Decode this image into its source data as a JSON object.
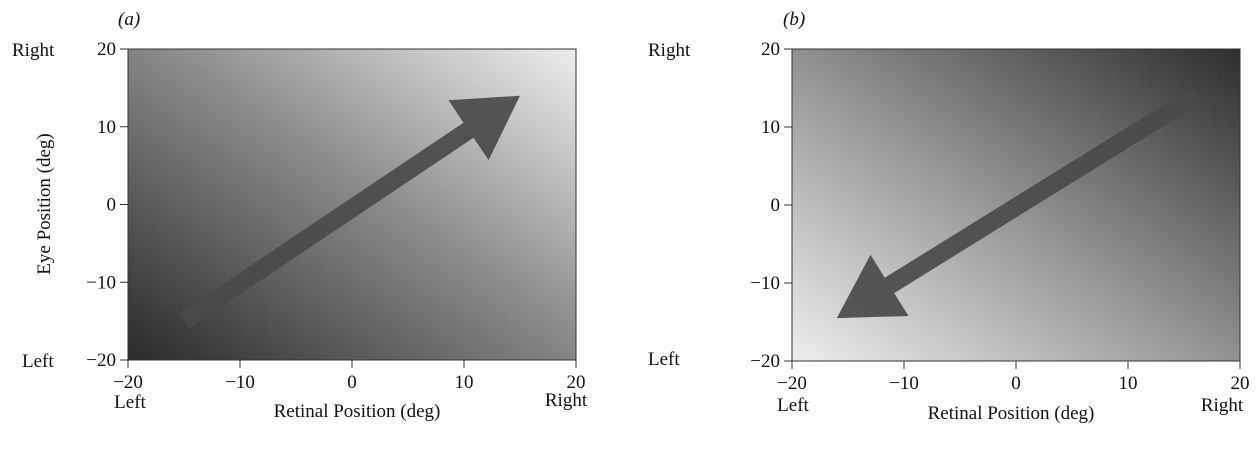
{
  "chart_data": [
    {
      "type": "heatmap",
      "panel_label": "(a)",
      "panel_label_text": "a",
      "xlabel": "Retinal Position (deg)",
      "ylabel": "Eye Position (deg)",
      "xlim": [
        -20,
        20
      ],
      "ylim": [
        -20,
        20
      ],
      "x_ticks": [
        "−20",
        "−10",
        "0",
        "10",
        "20"
      ],
      "y_ticks": [
        "20",
        "10",
        "0",
        "−10",
        "−20"
      ],
      "x_tick_values": [
        -20,
        -10,
        0,
        10,
        20
      ],
      "y_tick_values": [
        20,
        10,
        0,
        -10,
        -20
      ],
      "x_end_labels": {
        "min": "Left",
        "max": "Right"
      },
      "y_end_labels": {
        "min": "Left",
        "max": "Right"
      },
      "gradient": {
        "dark_corner": "bottom-left",
        "light_corner": "top-right",
        "dark_color": "#262626",
        "light_color": "#efefef"
      },
      "arrow": {
        "from": [
          -15,
          -15
        ],
        "to": [
          15,
          14
        ],
        "color": "#4a4a4a"
      },
      "grid": false,
      "legend": "none"
    },
    {
      "type": "heatmap",
      "panel_label": "(b)",
      "xlabel": "Retinal Position (deg)",
      "ylabel": "",
      "xlim": [
        -20,
        20
      ],
      "ylim": [
        -20,
        20
      ],
      "x_ticks": [
        "−20",
        "−10",
        "0",
        "10",
        "20"
      ],
      "y_ticks": [
        "20",
        "10",
        "0",
        "−10",
        "−20"
      ],
      "x_tick_values": [
        -20,
        -10,
        0,
        10,
        20
      ],
      "y_tick_values": [
        20,
        10,
        0,
        -10,
        -20
      ],
      "x_end_labels": {
        "min": "Left",
        "max": "Right"
      },
      "y_end_labels": {
        "min": "Left",
        "max": "Right"
      },
      "gradient": {
        "dark_corner": "top-right",
        "light_corner": "bottom-left",
        "dark_color": "#2a2a2a",
        "light_color": "#f0f0f0"
      },
      "arrow": {
        "from": [
          16,
          14
        ],
        "to": [
          -16,
          -14.5
        ],
        "color": "#4a4a4a"
      },
      "grid": false,
      "legend": "none"
    }
  ]
}
